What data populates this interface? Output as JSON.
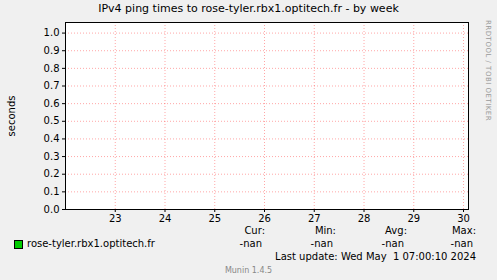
{
  "chart_data": {
    "type": "line",
    "title": "IPv4 ping times to rose-tyler.rbx1.optitech.fr - by week",
    "y_label": "seconds",
    "x": [
      23,
      24,
      25,
      26,
      27,
      28,
      29,
      30
    ],
    "series": [
      {
        "name": "rose-tyler.rbx1.optitech.fr",
        "color": "#00cc00",
        "values": [
          null,
          null,
          null,
          null,
          null,
          null,
          null,
          null
        ]
      }
    ],
    "xlim": [
      22,
      30.1
    ],
    "xticks": [
      23,
      24,
      25,
      26,
      27,
      28,
      29,
      30
    ],
    "ylim": [
      0,
      1.06
    ],
    "yticks": [
      {
        "value": 0,
        "label": "0.0"
      },
      {
        "value": 0.1,
        "label": "0.1"
      },
      {
        "value": 0.2,
        "label": "0.2"
      },
      {
        "value": 0.3,
        "label": "0.3"
      },
      {
        "value": 0.4,
        "label": "0.4"
      },
      {
        "value": 0.5,
        "label": "0.5"
      },
      {
        "value": 0.6,
        "label": "0.6"
      },
      {
        "value": 0.7,
        "label": "0.7"
      },
      {
        "value": 0.8,
        "label": "0.8"
      },
      {
        "value": 0.9,
        "label": "0.9"
      },
      {
        "value": 1,
        "label": "1.0"
      }
    ],
    "grid": true,
    "legend": "bottom",
    "stats_headers": [
      "Cur:",
      "Min:",
      "Avg:",
      "Max:"
    ],
    "stats": [
      [
        "-nan",
        "-nan",
        "-nan",
        "-nan"
      ]
    ],
    "last_update": "Last update: Wed May  1 07:00:10 2024",
    "footer": "Munin 1.4.5",
    "watermark": "RRDTOOL / TOBI OETIKER"
  }
}
